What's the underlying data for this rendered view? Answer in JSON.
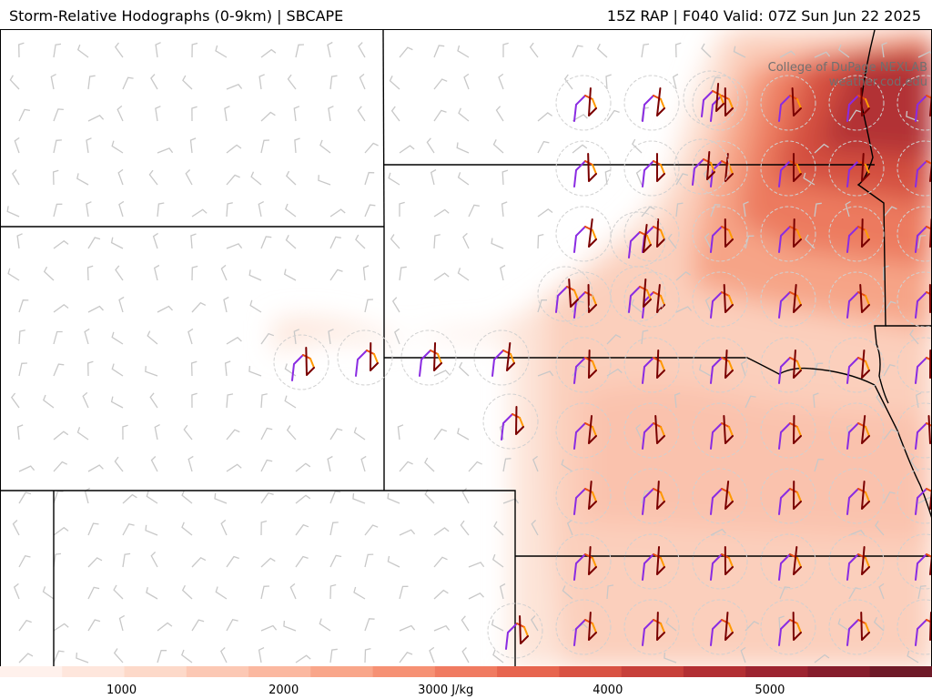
{
  "header": {
    "title_left": "Storm-Relative Hodographs (0-9km) | SBCAPE",
    "title_right": "15Z RAP | F040 Valid: 07Z Sun Jun 22 2025"
  },
  "credit": {
    "line1": "College of DuPage NEXLAB",
    "line2": "weather.cod.edu"
  },
  "colorbar": {
    "colors": [
      "#fff1ec",
      "#fee6dc",
      "#fdd9c9",
      "#fcc8b4",
      "#fbb8a0",
      "#f9a68a",
      "#f69174",
      "#f07b61",
      "#e7654f",
      "#d95243",
      "#c7403a",
      "#b22f33",
      "#9c2430",
      "#861d2c",
      "#6e1a28"
    ],
    "ticks": [
      {
        "value": 1000,
        "label": "1000"
      },
      {
        "value": 2000,
        "label": "2000"
      },
      {
        "value": 3000,
        "label": "3000 J/kg"
      },
      {
        "value": 4000,
        "label": "4000"
      },
      {
        "value": 5000,
        "label": "5000"
      }
    ],
    "range": [
      250,
      6000
    ],
    "units": "J/kg"
  },
  "legend_colors": {
    "hodo_0_1": "#8a2be2",
    "hodo_1_3": "#e84b10",
    "hodo_3_6": "#ff9900",
    "hodo_6_9": "#7a0000",
    "boundary": "#000000",
    "barb": "#c8c8c8"
  }
}
